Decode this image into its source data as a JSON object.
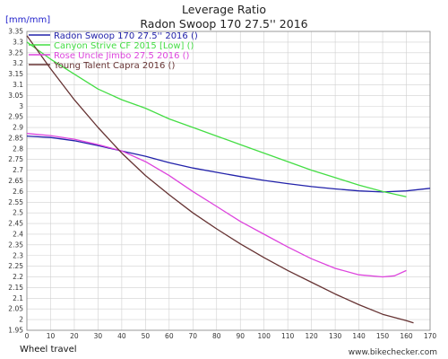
{
  "chart_data": {
    "type": "line",
    "title": "Leverage Ratio",
    "subtitle": "Radon Swoop 170 27.5'' 2016",
    "ylabel": "[mm/mm]",
    "xlabel": "Wheel travel",
    "credit": "www.bikechecker.com",
    "xlim": [
      0,
      170
    ],
    "ylim": [
      1.95,
      3.35
    ],
    "x_ticks": [
      0,
      10,
      20,
      30,
      40,
      50,
      60,
      70,
      80,
      90,
      100,
      110,
      120,
      130,
      140,
      150,
      160,
      170
    ],
    "y_ticks": [
      1.95,
      2,
      2.05,
      2.1,
      2.15,
      2.2,
      2.25,
      2.3,
      2.35,
      2.4,
      2.45,
      2.5,
      2.55,
      2.6,
      2.65,
      2.7,
      2.75,
      2.8,
      2.85,
      2.9,
      2.95,
      3,
      3.05,
      3.1,
      3.15,
      3.2,
      3.25,
      3.3,
      3.35
    ],
    "grid": true,
    "legend_position": "top-left",
    "series": [
      {
        "name": "Radon Swoop 170 27.5'' 2016 ()",
        "color": "#2222aa",
        "x": [
          0,
          10,
          20,
          30,
          40,
          50,
          60,
          70,
          80,
          90,
          100,
          110,
          120,
          130,
          140,
          150,
          160,
          170
        ],
        "y": [
          2.86,
          2.853,
          2.838,
          2.815,
          2.79,
          2.765,
          2.735,
          2.71,
          2.69,
          2.67,
          2.652,
          2.637,
          2.623,
          2.612,
          2.603,
          2.598,
          2.603,
          2.615
        ]
      },
      {
        "name": "Canyon Strive CF 2015 [Low] ()",
        "color": "#44dd44",
        "x": [
          0,
          10,
          20,
          30,
          40,
          50,
          60,
          70,
          80,
          90,
          100,
          110,
          120,
          130,
          140,
          150,
          160
        ],
        "y": [
          3.3,
          3.22,
          3.15,
          3.08,
          3.03,
          2.99,
          2.94,
          2.9,
          2.86,
          2.82,
          2.78,
          2.74,
          2.7,
          2.665,
          2.63,
          2.6,
          2.575
        ]
      },
      {
        "name": "Rose Uncle Jimbo 27.5 2016 ()",
        "color": "#dd44dd",
        "x": [
          0,
          10,
          20,
          30,
          40,
          50,
          60,
          70,
          80,
          90,
          100,
          110,
          120,
          130,
          140,
          150,
          155,
          160
        ],
        "y": [
          2.872,
          2.862,
          2.845,
          2.82,
          2.79,
          2.74,
          2.675,
          2.6,
          2.53,
          2.46,
          2.4,
          2.34,
          2.285,
          2.24,
          2.21,
          2.2,
          2.205,
          2.23
        ]
      },
      {
        "name": "Young Talent Capra 2016 ()",
        "color": "#663333",
        "x": [
          0,
          10,
          20,
          30,
          40,
          50,
          60,
          70,
          80,
          90,
          100,
          110,
          120,
          130,
          140,
          150,
          160,
          163
        ],
        "y": [
          3.33,
          3.175,
          3.03,
          2.9,
          2.78,
          2.675,
          2.585,
          2.5,
          2.425,
          2.355,
          2.29,
          2.23,
          2.175,
          2.12,
          2.07,
          2.025,
          1.995,
          1.985
        ]
      }
    ]
  }
}
